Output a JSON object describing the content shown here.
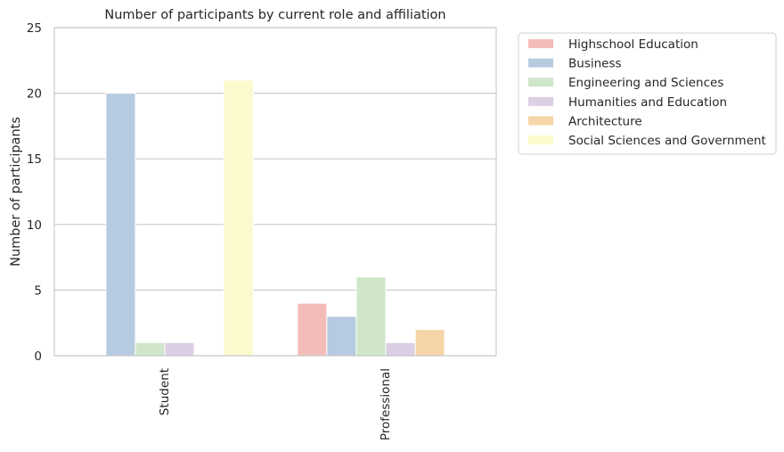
{
  "chart_data": {
    "type": "bar",
    "title": "Number of participants by current role and affiliation",
    "xlabel": "",
    "ylabel": "Number of participants",
    "categories": [
      "Student",
      "Professional"
    ],
    "ylim": [
      0,
      25
    ],
    "yticks": [
      0,
      5,
      10,
      15,
      20,
      25
    ],
    "grid": true,
    "legend_position": "outside-top-right",
    "series": [
      {
        "name": "Highschool Education",
        "color": "#f4bcb8",
        "values": [
          0,
          4
        ]
      },
      {
        "name": "Business",
        "color": "#b6cbdf",
        "values": [
          20,
          3
        ]
      },
      {
        "name": "Engineering and Sciences",
        "color": "#cfe6cb",
        "values": [
          1,
          6
        ]
      },
      {
        "name": "Humanities and Education",
        "color": "#dccee3",
        "values": [
          1,
          1
        ]
      },
      {
        "name": "Architecture",
        "color": "#f6d6a8",
        "values": [
          0,
          2
        ]
      },
      {
        "name": "Social Sciences and Government",
        "color": "#fafacd",
        "values": [
          21,
          0
        ]
      }
    ]
  }
}
